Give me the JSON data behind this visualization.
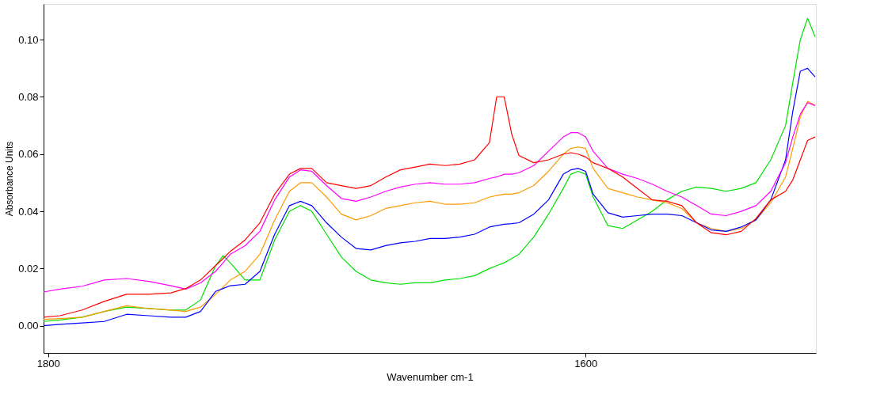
{
  "chart_data": {
    "type": "line",
    "xlabel": "Wavenumber cm-1",
    "ylabel": "Absorbance Units",
    "x": [
      1801.7,
      1795.6,
      1787.3,
      1779.1,
      1770.8,
      1762.5,
      1754.3,
      1748.8,
      1743.3,
      1737.7,
      1734.9,
      1732.2,
      1726.7,
      1721.2,
      1715.7,
      1710.2,
      1706.1,
      1701.9,
      1696.4,
      1690.9,
      1685.4,
      1679.9,
      1674.4,
      1668.9,
      1663.4,
      1657.9,
      1652.3,
      1646.8,
      1641.3,
      1635.8,
      1633.1,
      1630.3,
      1627.5,
      1624.8,
      1619.3,
      1613.8,
      1608.3,
      1605.5,
      1602.8,
      1600.0,
      1597.2,
      1591.7,
      1586.2,
      1580.7,
      1575.2,
      1569.7,
      1564.2,
      1558.7,
      1553.2,
      1547.7,
      1542.1,
      1536.6,
      1531.1,
      1525.6,
      1522.9,
      1520.1,
      1517.4,
      1514.6
    ],
    "series": [
      {
        "color": "#00e000",
        "values": [
          0.0015,
          0.002,
          0.003,
          0.005,
          0.0065,
          0.006,
          0.0055,
          0.0055,
          0.009,
          0.021,
          0.0245,
          0.022,
          0.016,
          0.016,
          0.03,
          0.04,
          0.042,
          0.04,
          0.032,
          0.024,
          0.019,
          0.016,
          0.015,
          0.0145,
          0.015,
          0.015,
          0.016,
          0.0165,
          0.0175,
          0.02,
          0.021,
          0.022,
          0.0235,
          0.025,
          0.031,
          0.039,
          0.048,
          0.053,
          0.054,
          0.053,
          0.045,
          0.035,
          0.034,
          0.037,
          0.04,
          0.044,
          0.047,
          0.0485,
          0.048,
          0.047,
          0.048,
          0.05,
          0.058,
          0.07,
          0.085,
          0.1,
          0.1075,
          0.101
        ]
      },
      {
        "color": "#ff9900",
        "values": [
          0.0022,
          0.0025,
          0.003,
          0.005,
          0.007,
          0.006,
          0.0055,
          0.005,
          0.0065,
          0.011,
          0.0135,
          0.016,
          0.019,
          0.025,
          0.037,
          0.047,
          0.05,
          0.05,
          0.045,
          0.039,
          0.037,
          0.0385,
          0.041,
          0.042,
          0.043,
          0.0435,
          0.0425,
          0.0425,
          0.043,
          0.045,
          0.0455,
          0.046,
          0.046,
          0.0465,
          0.049,
          0.054,
          0.06,
          0.062,
          0.0625,
          0.062,
          0.055,
          0.048,
          0.0465,
          0.045,
          0.044,
          0.043,
          0.041,
          0.036,
          0.034,
          0.033,
          0.034,
          0.037,
          0.043,
          0.052,
          0.062,
          0.073,
          0.0785,
          0.077
        ]
      },
      {
        "color": "#0000ff",
        "values": [
          0.0,
          0.0005,
          0.001,
          0.0015,
          0.004,
          0.0035,
          0.003,
          0.003,
          0.005,
          0.012,
          0.013,
          0.014,
          0.0145,
          0.019,
          0.032,
          0.042,
          0.0435,
          0.042,
          0.036,
          0.031,
          0.027,
          0.0265,
          0.028,
          0.029,
          0.0295,
          0.0305,
          0.0305,
          0.031,
          0.032,
          0.0345,
          0.035,
          0.0355,
          0.0357,
          0.036,
          0.039,
          0.044,
          0.053,
          0.0545,
          0.055,
          0.054,
          0.046,
          0.0395,
          0.038,
          0.0385,
          0.039,
          0.039,
          0.0385,
          0.036,
          0.0335,
          0.033,
          0.0345,
          0.037,
          0.044,
          0.058,
          0.075,
          0.089,
          0.09,
          0.087
        ]
      },
      {
        "color": "#ff00ff",
        "values": [
          0.0118,
          0.0128,
          0.0138,
          0.016,
          0.0165,
          0.0155,
          0.014,
          0.0128,
          0.015,
          0.019,
          0.022,
          0.025,
          0.028,
          0.033,
          0.044,
          0.052,
          0.0545,
          0.054,
          0.049,
          0.0445,
          0.0435,
          0.045,
          0.047,
          0.0485,
          0.0495,
          0.05,
          0.0495,
          0.0495,
          0.05,
          0.0515,
          0.052,
          0.053,
          0.053,
          0.0535,
          0.056,
          0.061,
          0.066,
          0.0675,
          0.0675,
          0.066,
          0.061,
          0.055,
          0.053,
          0.0515,
          0.0495,
          0.047,
          0.045,
          0.042,
          0.039,
          0.0385,
          0.04,
          0.042,
          0.047,
          0.057,
          0.066,
          0.074,
          0.078,
          0.077
        ]
      },
      {
        "color": "#ff0000",
        "values": [
          0.003,
          0.0035,
          0.0055,
          0.0085,
          0.011,
          0.011,
          0.0115,
          0.013,
          0.016,
          0.021,
          0.0235,
          0.026,
          0.03,
          0.036,
          0.046,
          0.053,
          0.055,
          0.055,
          0.05,
          0.049,
          0.048,
          0.049,
          0.052,
          0.0545,
          0.0555,
          0.0565,
          0.056,
          0.0565,
          0.058,
          0.064,
          0.08,
          0.08,
          0.067,
          0.0595,
          0.057,
          0.058,
          0.06,
          0.0605,
          0.06,
          0.059,
          0.057,
          0.055,
          0.052,
          0.048,
          0.044,
          0.0435,
          0.042,
          0.036,
          0.0325,
          0.0318,
          0.033,
          0.0375,
          0.044,
          0.047,
          0.051,
          0.058,
          0.0648,
          0.066
        ]
      }
    ],
    "xlim": [
      1801.7,
      1514.3
    ],
    "xticks": [
      1800,
      1600
    ],
    "ylim": [
      -0.0095,
      0.1125
    ],
    "yticks": [
      {
        "value": 0,
        "label": "0.00"
      },
      {
        "value": 0.02,
        "label": "0.02"
      },
      {
        "value": 0.04,
        "label": "0.04"
      },
      {
        "value": 0.06,
        "label": "0.06"
      },
      {
        "value": 0.08,
        "label": "0.08"
      },
      {
        "value": 0.1,
        "label": "0.10"
      }
    ],
    "grid": false,
    "legend": false,
    "marker": "none",
    "line_style": "solid"
  }
}
